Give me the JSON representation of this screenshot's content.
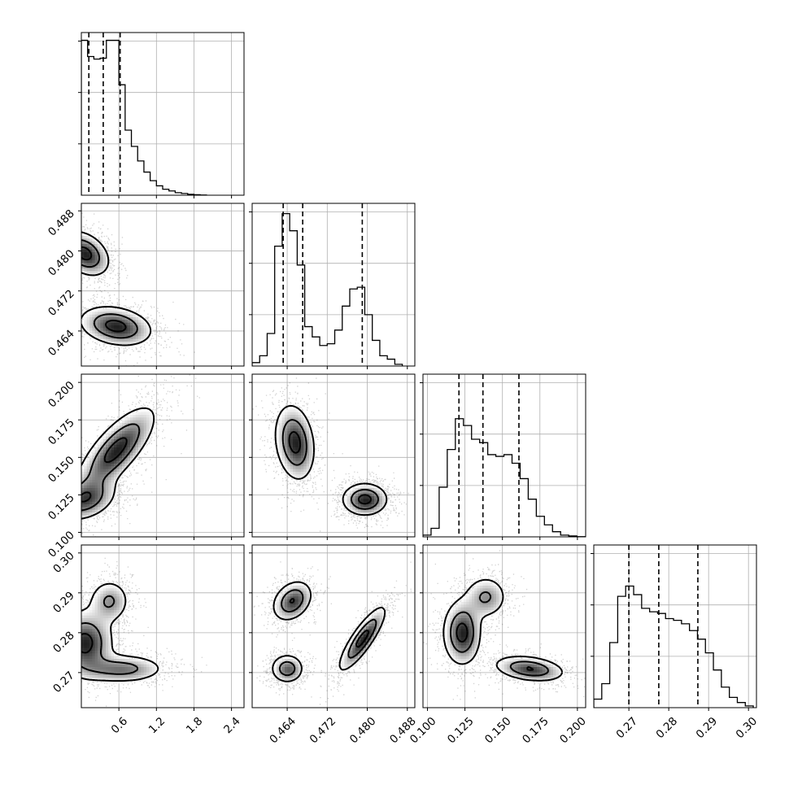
{
  "chart_data": {
    "type": "corner",
    "title": "",
    "parameters": [
      {
        "index": 0,
        "label": "",
        "range": [
          0.0,
          2.6
        ],
        "ticks": [
          0.6,
          1.2,
          1.8,
          2.4
        ],
        "tick_labels": [
          "0.6",
          "1.2",
          "1.8",
          "2.4"
        ],
        "quantiles": [
          0.12,
          0.35,
          0.62
        ]
      },
      {
        "index": 1,
        "label": "",
        "range": [
          0.457,
          0.4895
        ],
        "ticks": [
          0.464,
          0.472,
          0.48,
          0.488
        ],
        "tick_labels": [
          "0.464",
          "0.472",
          "0.480",
          "0.488"
        ],
        "quantiles": [
          0.4632,
          0.4671,
          0.479
        ]
      },
      {
        "index": 2,
        "label": "",
        "range": [
          0.097,
          0.2055
        ],
        "ticks": [
          0.1,
          0.125,
          0.15,
          0.175,
          0.2
        ],
        "tick_labels": [
          "0.100",
          "0.125",
          "0.150",
          "0.175",
          "0.200"
        ],
        "quantiles": [
          0.121,
          0.137,
          0.161
        ]
      },
      {
        "index": 3,
        "label": "",
        "range": [
          0.2612,
          0.302
        ],
        "ticks": [
          0.27,
          0.28,
          0.29,
          0.3
        ],
        "tick_labels": [
          "0.27",
          "0.28",
          "0.29",
          "0.30"
        ],
        "quantiles": [
          0.27,
          0.2775,
          0.2873
        ]
      }
    ],
    "histograms": [
      {
        "param": 0,
        "bin_edges": [
          0.0,
          0.1,
          0.2,
          0.3,
          0.4,
          0.5,
          0.6,
          0.7,
          0.8,
          0.9,
          1.0,
          1.1,
          1.2,
          1.3,
          1.4,
          1.5,
          1.6,
          1.7,
          1.8,
          1.9,
          2.0
        ],
        "counts": [
          0.905,
          0.81,
          0.795,
          0.8,
          0.905,
          0.905,
          0.645,
          0.38,
          0.285,
          0.2,
          0.135,
          0.085,
          0.055,
          0.035,
          0.025,
          0.015,
          0.01,
          0.005,
          0.003,
          0.001
        ]
      },
      {
        "param": 1,
        "bin_edges": [
          0.457,
          0.4585,
          0.46,
          0.4615,
          0.463,
          0.4645,
          0.466,
          0.4675,
          0.469,
          0.4705,
          0.472,
          0.4735,
          0.475,
          0.4765,
          0.478,
          0.4795,
          0.481,
          0.4825,
          0.484,
          0.4855,
          0.487
        ],
        "counts": [
          0.02,
          0.06,
          0.19,
          0.7,
          0.89,
          0.79,
          0.59,
          0.23,
          0.17,
          0.12,
          0.13,
          0.21,
          0.35,
          0.45,
          0.46,
          0.3,
          0.15,
          0.06,
          0.04,
          0.01
        ]
      },
      {
        "param": 2,
        "bin_edges": [
          0.097,
          0.1024,
          0.1078,
          0.1132,
          0.1186,
          0.124,
          0.1294,
          0.1348,
          0.1402,
          0.1456,
          0.151,
          0.1564,
          0.1618,
          0.1672,
          0.1726,
          0.178,
          0.1834,
          0.1888,
          0.1942,
          0.1996,
          0.205
        ],
        "counts": [
          0.01,
          0.05,
          0.29,
          0.51,
          0.69,
          0.65,
          0.57,
          0.55,
          0.48,
          0.47,
          0.48,
          0.43,
          0.34,
          0.22,
          0.12,
          0.07,
          0.03,
          0.01,
          0.005,
          0.001
        ]
      },
      {
        "param": 3,
        "bin_edges": [
          0.2612,
          0.2632,
          0.2652,
          0.2672,
          0.2692,
          0.2712,
          0.2732,
          0.2752,
          0.2772,
          0.2792,
          0.2812,
          0.2832,
          0.2852,
          0.2872,
          0.2892,
          0.2912,
          0.2932,
          0.2952,
          0.2972,
          0.2992,
          0.3012
        ],
        "counts": [
          0.05,
          0.14,
          0.38,
          0.65,
          0.71,
          0.66,
          0.58,
          0.56,
          0.55,
          0.52,
          0.51,
          0.49,
          0.45,
          0.4,
          0.32,
          0.22,
          0.12,
          0.06,
          0.03,
          0.01
        ]
      }
    ],
    "pairs": [
      {
        "x_param": 0,
        "y_param": 1,
        "modes": [
          {
            "center": [
              0.05,
              0.4795
            ],
            "sd": [
              0.22,
              0.0025
            ],
            "weight": 1.0,
            "rho": -0.35
          },
          {
            "center": [
              0.55,
              0.465
            ],
            "sd": [
              0.32,
              0.0022
            ],
            "weight": 1.0,
            "rho": -0.25
          }
        ]
      },
      {
        "x_param": 0,
        "y_param": 2,
        "modes": [
          {
            "center": [
              0.05,
              0.122
            ],
            "sd": [
              0.28,
              0.008
            ],
            "weight": 0.8,
            "rho": 0.3
          },
          {
            "center": [
              0.55,
              0.155
            ],
            "sd": [
              0.35,
              0.016
            ],
            "weight": 1.0,
            "rho": 0.75
          }
        ]
      },
      {
        "x_param": 1,
        "y_param": 2,
        "modes": [
          {
            "center": [
              0.4655,
              0.16
            ],
            "sd": [
              0.0022,
              0.014
            ],
            "weight": 1.0,
            "rho": -0.2
          },
          {
            "center": [
              0.4795,
              0.122
            ],
            "sd": [
              0.0025,
              0.006
            ],
            "weight": 1.0,
            "rho": 0.0
          }
        ]
      },
      {
        "x_param": 0,
        "y_param": 3,
        "modes": [
          {
            "center": [
              0.05,
              0.2775
            ],
            "sd": [
              0.25,
              0.0045
            ],
            "weight": 1.0,
            "rho": 0.0
          },
          {
            "center": [
              0.45,
              0.288
            ],
            "sd": [
              0.18,
              0.003
            ],
            "weight": 0.6,
            "rho": 0.0
          },
          {
            "center": [
              0.65,
              0.271
            ],
            "sd": [
              0.38,
              0.002
            ],
            "weight": 0.7,
            "rho": 0.0
          }
        ]
      },
      {
        "x_param": 1,
        "y_param": 3,
        "modes": [
          {
            "center": [
              0.465,
              0.288
            ],
            "sd": [
              0.0022,
              0.0028
            ],
            "weight": 0.9,
            "rho": 0.3
          },
          {
            "center": [
              0.464,
              0.271
            ],
            "sd": [
              0.0018,
              0.002
            ],
            "weight": 0.8,
            "rho": 0.0
          },
          {
            "center": [
              0.479,
              0.2785
            ],
            "sd": [
              0.0026,
              0.0045
            ],
            "weight": 1.0,
            "rho": 0.85
          }
        ]
      },
      {
        "x_param": 2,
        "y_param": 3,
        "modes": [
          {
            "center": [
              0.123,
              0.28
            ],
            "sd": [
              0.007,
              0.0045
            ],
            "weight": 1.0,
            "rho": 0.0
          },
          {
            "center": [
              0.139,
              0.289
            ],
            "sd": [
              0.008,
              0.003
            ],
            "weight": 0.6,
            "rho": 0.0
          },
          {
            "center": [
              0.168,
              0.271
            ],
            "sd": [
              0.013,
              0.0018
            ],
            "weight": 0.9,
            "rho": -0.3
          }
        ]
      }
    ],
    "contour_levels": [
      0.88,
      0.56,
      0.22
    ],
    "grid": true,
    "colors": {
      "scatter": "#000000",
      "contour": "#000000",
      "grid": "#b0b0b0"
    }
  }
}
